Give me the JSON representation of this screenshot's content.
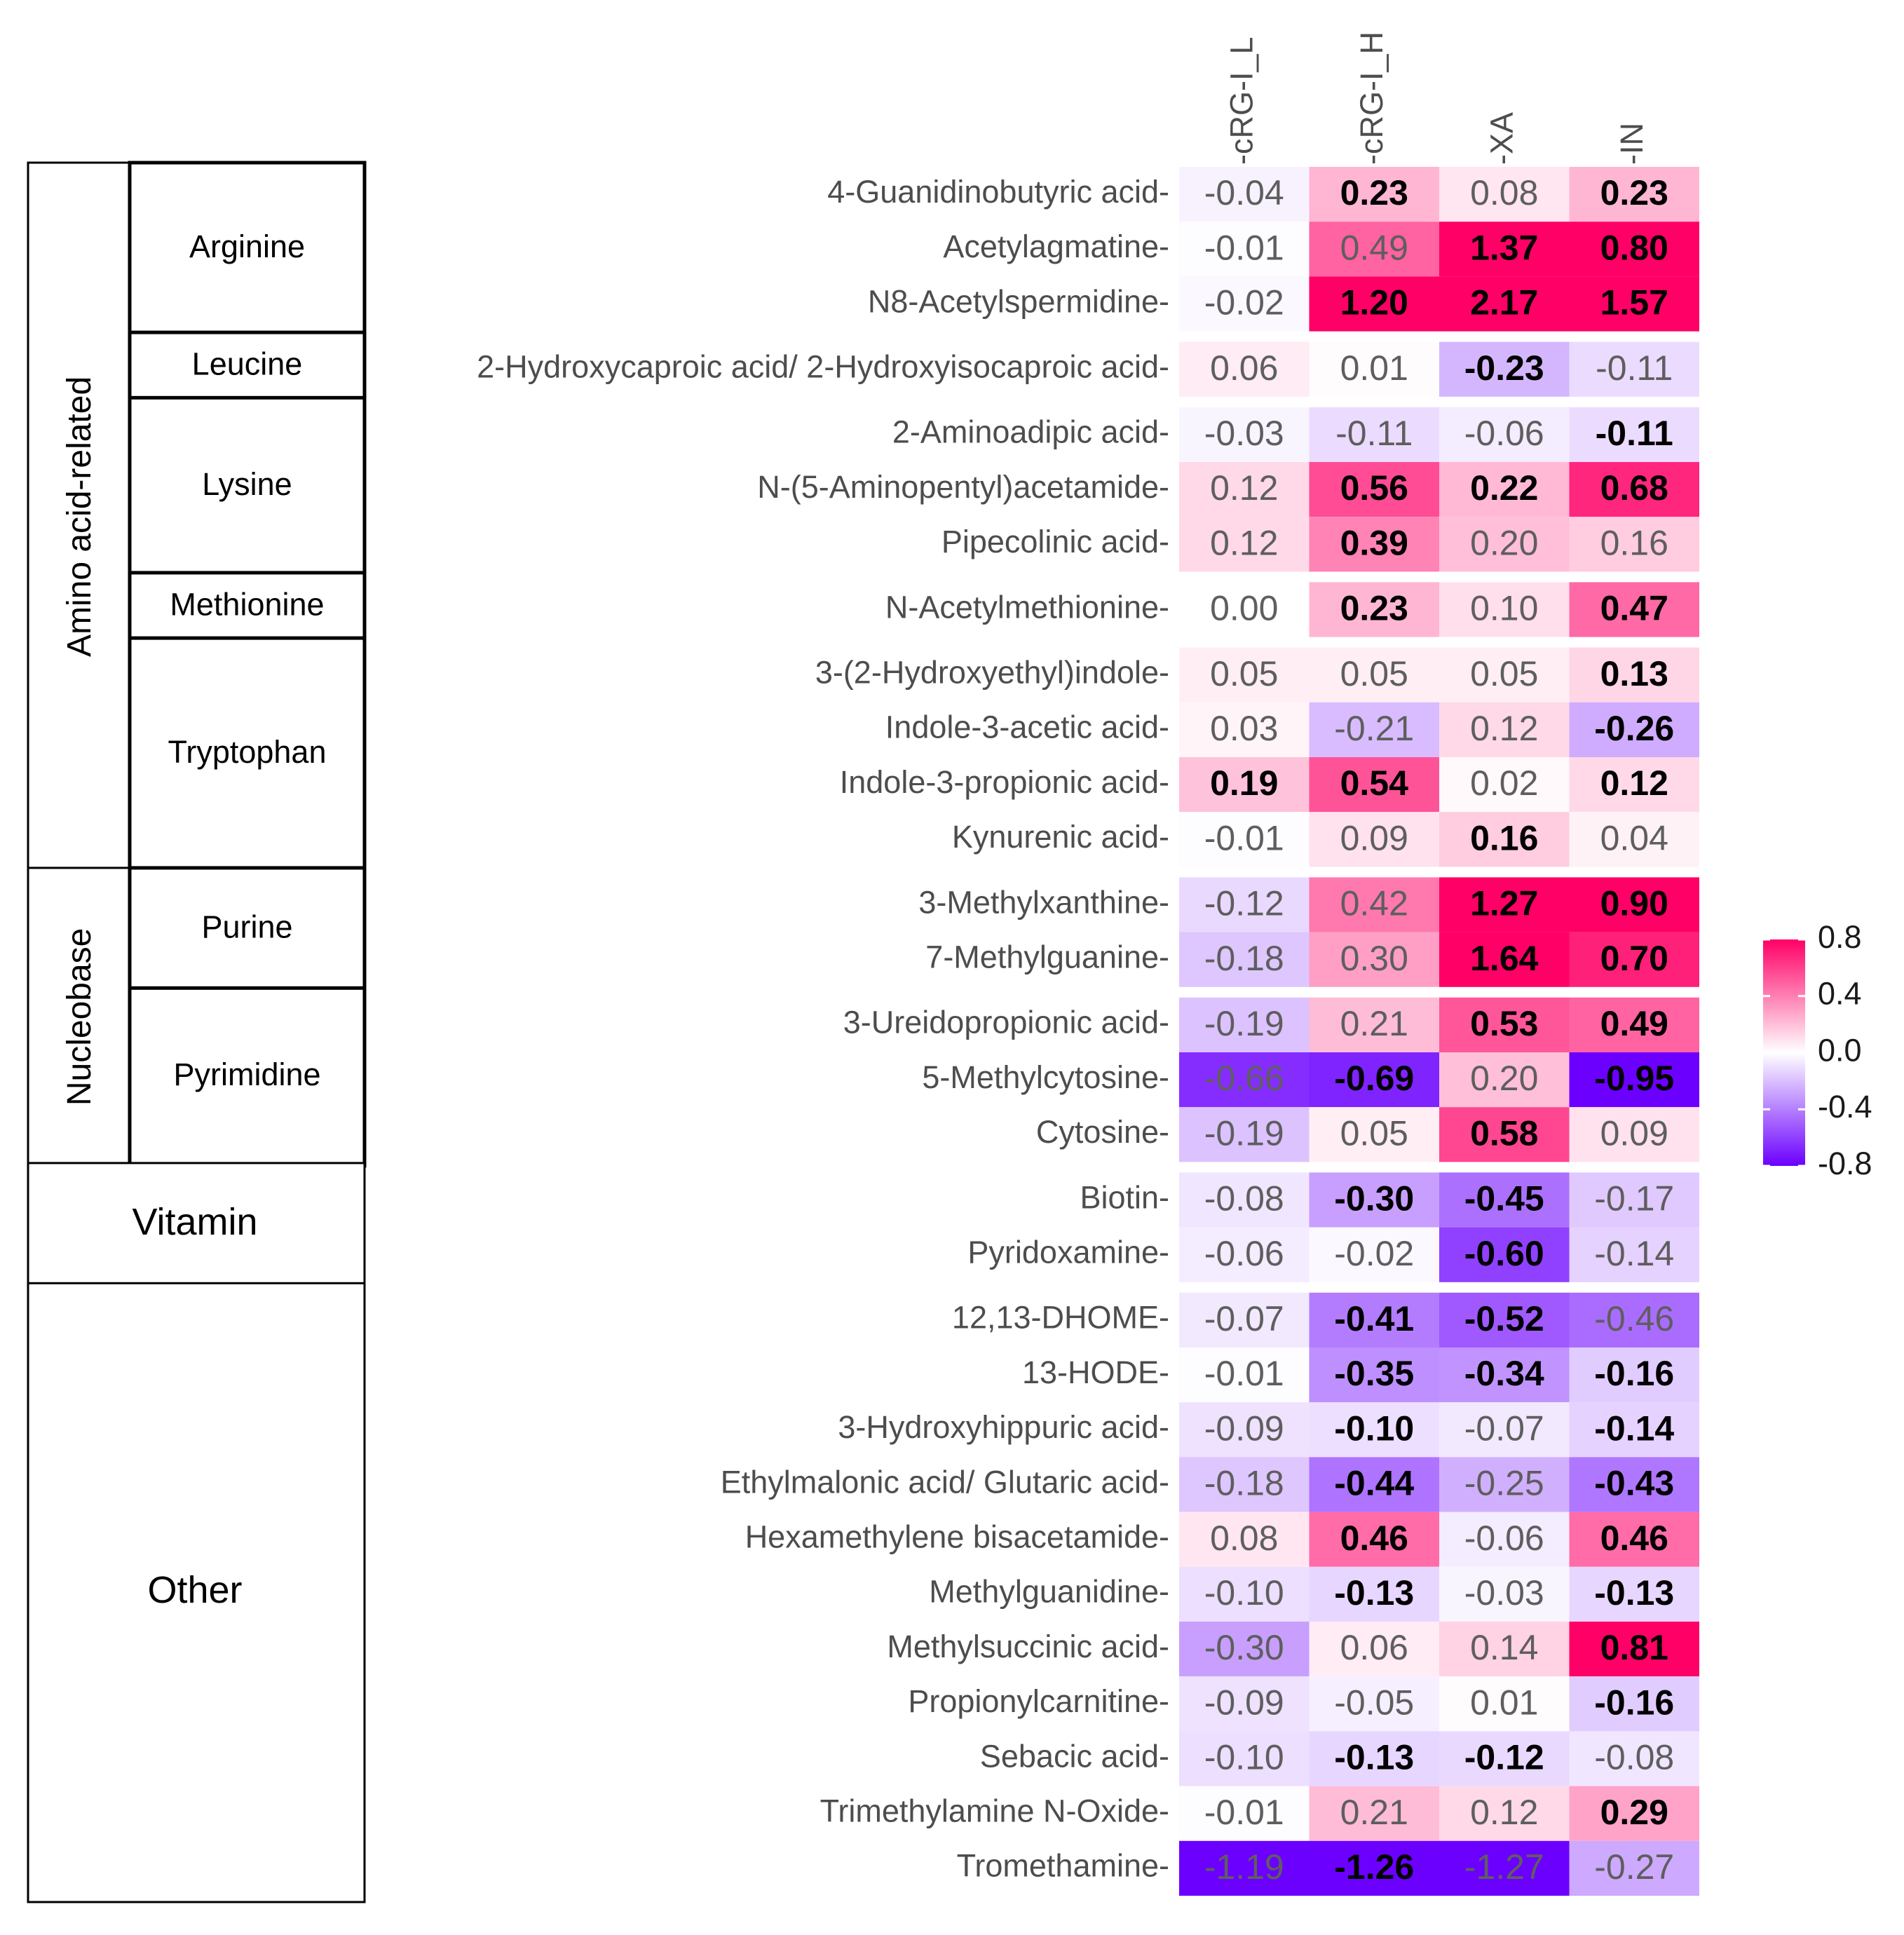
{
  "chart_data": {
    "type": "heatmap",
    "columns": [
      "cRG-I_L",
      "cRG-I_H",
      "XA",
      "IN"
    ],
    "rows": [
      {
        "label": "4-Guanidinobutyric acid",
        "values": [
          -0.04,
          0.23,
          0.08,
          0.23
        ],
        "bold": [
          false,
          true,
          false,
          true
        ]
      },
      {
        "label": "Acetylagmatine",
        "values": [
          -0.01,
          0.49,
          1.37,
          0.8
        ],
        "bold": [
          false,
          false,
          true,
          true
        ]
      },
      {
        "label": "N8-Acetylspermidine",
        "values": [
          -0.02,
          1.2,
          2.17,
          1.57
        ],
        "bold": [
          false,
          true,
          true,
          true
        ]
      },
      {
        "label": "2-Hydroxycaproic acid/ 2-Hydroxyisocaproic acid",
        "values": [
          0.06,
          0.01,
          -0.23,
          -0.11
        ],
        "bold": [
          false,
          false,
          true,
          false
        ]
      },
      {
        "label": "2-Aminoadipic acid",
        "values": [
          -0.03,
          -0.11,
          -0.06,
          -0.11
        ],
        "bold": [
          false,
          false,
          false,
          true
        ]
      },
      {
        "label": "N-(5-Aminopentyl)acetamide",
        "values": [
          0.12,
          0.56,
          0.22,
          0.68
        ],
        "bold": [
          false,
          true,
          true,
          true
        ]
      },
      {
        "label": "Pipecolinic acid",
        "values": [
          0.12,
          0.39,
          0.2,
          0.16
        ],
        "bold": [
          false,
          true,
          false,
          false
        ]
      },
      {
        "label": "N-Acetylmethionine",
        "values": [
          0.0,
          0.23,
          0.1,
          0.47
        ],
        "bold": [
          false,
          true,
          false,
          true
        ]
      },
      {
        "label": "3-(2-Hydroxyethyl)indole",
        "values": [
          0.05,
          0.05,
          0.05,
          0.13
        ],
        "bold": [
          false,
          false,
          false,
          true
        ]
      },
      {
        "label": "Indole-3-acetic acid",
        "values": [
          0.03,
          -0.21,
          0.12,
          -0.26
        ],
        "bold": [
          false,
          false,
          false,
          true
        ]
      },
      {
        "label": "Indole-3-propionic acid",
        "values": [
          0.19,
          0.54,
          0.02,
          0.12
        ],
        "bold": [
          true,
          true,
          false,
          true
        ]
      },
      {
        "label": "Kynurenic acid",
        "values": [
          -0.01,
          0.09,
          0.16,
          0.04
        ],
        "bold": [
          false,
          false,
          true,
          false
        ]
      },
      {
        "label": "3-Methylxanthine",
        "values": [
          -0.12,
          0.42,
          1.27,
          0.9
        ],
        "bold": [
          false,
          false,
          true,
          true
        ]
      },
      {
        "label": "7-Methylguanine",
        "values": [
          -0.18,
          0.3,
          1.64,
          0.7
        ],
        "bold": [
          false,
          false,
          true,
          true
        ]
      },
      {
        "label": "3-Ureidopropionic acid",
        "values": [
          -0.19,
          0.21,
          0.53,
          0.49
        ],
        "bold": [
          false,
          false,
          true,
          true
        ]
      },
      {
        "label": "5-Methylcytosine",
        "values": [
          -0.66,
          -0.69,
          0.2,
          -0.95
        ],
        "bold": [
          false,
          true,
          false,
          true
        ]
      },
      {
        "label": "Cytosine",
        "values": [
          -0.19,
          0.05,
          0.58,
          0.09
        ],
        "bold": [
          false,
          false,
          true,
          false
        ]
      },
      {
        "label": "Biotin",
        "values": [
          -0.08,
          -0.3,
          -0.45,
          -0.17
        ],
        "bold": [
          false,
          true,
          true,
          false
        ]
      },
      {
        "label": "Pyridoxamine",
        "values": [
          -0.06,
          -0.02,
          -0.6,
          -0.14
        ],
        "bold": [
          false,
          false,
          true,
          false
        ]
      },
      {
        "label": "12,13-DHOME",
        "values": [
          -0.07,
          -0.41,
          -0.52,
          -0.46
        ],
        "bold": [
          false,
          true,
          true,
          false
        ]
      },
      {
        "label": "13-HODE",
        "values": [
          -0.01,
          -0.35,
          -0.34,
          -0.16
        ],
        "bold": [
          false,
          true,
          true,
          true
        ]
      },
      {
        "label": "3-Hydroxyhippuric acid",
        "values": [
          -0.09,
          -0.1,
          -0.07,
          -0.14
        ],
        "bold": [
          false,
          true,
          false,
          true
        ]
      },
      {
        "label": "Ethylmalonic acid/ Glutaric acid",
        "values": [
          -0.18,
          -0.44,
          -0.25,
          -0.43
        ],
        "bold": [
          false,
          true,
          false,
          true
        ]
      },
      {
        "label": "Hexamethylene bisacetamide",
        "values": [
          0.08,
          0.46,
          -0.06,
          0.46
        ],
        "bold": [
          false,
          true,
          false,
          true
        ]
      },
      {
        "label": "Methylguanidine",
        "values": [
          -0.1,
          -0.13,
          -0.03,
          -0.13
        ],
        "bold": [
          false,
          true,
          false,
          true
        ]
      },
      {
        "label": "Methylsuccinic acid",
        "values": [
          -0.3,
          0.06,
          0.14,
          0.81
        ],
        "bold": [
          false,
          false,
          false,
          true
        ]
      },
      {
        "label": "Propionylcarnitine",
        "values": [
          -0.09,
          -0.05,
          0.01,
          -0.16
        ],
        "bold": [
          false,
          false,
          false,
          true
        ]
      },
      {
        "label": "Sebacic acid",
        "values": [
          -0.1,
          -0.13,
          -0.12,
          -0.08
        ],
        "bold": [
          false,
          true,
          true,
          false
        ]
      },
      {
        "label": "Trimethylamine N-Oxide",
        "values": [
          -0.01,
          0.21,
          0.12,
          0.29
        ],
        "bold": [
          false,
          false,
          false,
          true
        ]
      },
      {
        "label": "Tromethamine",
        "values": [
          -1.19,
          -1.26,
          -1.27,
          -0.27
        ],
        "bold": [
          false,
          true,
          false,
          false
        ]
      }
    ],
    "row_blocks": [
      3,
      1,
      3,
      1,
      4,
      2,
      3,
      2,
      11
    ],
    "groups": {
      "level1": [
        {
          "label": "Amino acid-related",
          "rows": 12,
          "subgroups": [
            {
              "label": "Arginine",
              "rows": 3
            },
            {
              "label": "Leucine",
              "rows": 1
            },
            {
              "label": "Lysine",
              "rows": 3
            },
            {
              "label": "Methionine",
              "rows": 1
            },
            {
              "label": "Tryptophan",
              "rows": 4
            }
          ]
        },
        {
          "label": "Nucleobase",
          "rows": 5,
          "subgroups": [
            {
              "label": "Purine",
              "rows": 2
            },
            {
              "label": "Pyrimidine",
              "rows": 3
            }
          ]
        },
        {
          "label": "Vitamin",
          "rows": 2,
          "subgroups": []
        },
        {
          "label": "Other",
          "rows": 11,
          "subgroups": []
        }
      ]
    },
    "legend": {
      "min": -0.8,
      "max": 0.8,
      "ticks": [
        "0.8",
        "0.4",
        "0.0",
        "-0.4",
        "-0.8"
      ],
      "tick_values": [
        0.8,
        0.4,
        0.0,
        -0.4,
        -0.8
      ],
      "position": "right"
    },
    "colors": {
      "low": "#6b00ff",
      "mid": "#ffffff",
      "high": "#ff0066"
    }
  }
}
